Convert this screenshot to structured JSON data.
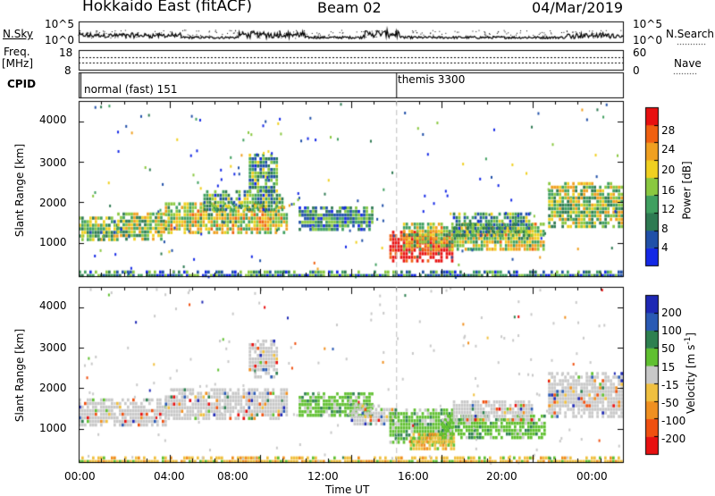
{
  "header": {
    "station": "Hokkaido East (fitACF)",
    "beam": "Beam 02",
    "date": "04/Mar/2019"
  },
  "summary_panel": {
    "nsky_label": "N.Sky",
    "nsky_ticks": [
      "10^5",
      "10^0"
    ],
    "nsearch_label": "N.Search",
    "nsearch_ticks": [
      "10^5",
      "10^0"
    ],
    "freq_label_1": "Freq.",
    "freq_label_2": "[MHz]",
    "freq_ticks": [
      "18",
      "8"
    ],
    "nave_label": "Nave",
    "nave_ticks": [
      "60",
      "0"
    ],
    "cpid_label": "CPID",
    "cpid_modes": [
      {
        "label": "normal (fast) 151",
        "start_hour": 0
      },
      {
        "label": "themis 3300",
        "start_hour": 14
      }
    ]
  },
  "chart_data": [
    {
      "type": "heatmap",
      "name": "power",
      "xlabel": "",
      "ylabel": "Slant Range [km]",
      "xlim": [
        0,
        24
      ],
      "ylim": [
        180,
        4500
      ],
      "y_ticks": [
        1000,
        2000,
        3000,
        4000
      ],
      "colorbar_label": "Power [dB]",
      "colorbar_ticks": [
        4,
        8,
        12,
        16,
        20,
        24,
        28
      ],
      "colorbar_colors": [
        "#1428e6",
        "#2050a8",
        "#2e7a52",
        "#40a060",
        "#8ac840",
        "#f0d020",
        "#f0a020",
        "#f06010",
        "#e81010"
      ],
      "echo_regions": [
        {
          "t0": 0.0,
          "t1": 1.7,
          "r0": 1050,
          "r1": 1650,
          "level": 0.45
        },
        {
          "t0": 1.7,
          "t1": 3.8,
          "r0": 1100,
          "r1": 1750,
          "level": 0.5
        },
        {
          "t0": 3.8,
          "t1": 9.2,
          "r0": 1250,
          "r1": 2000,
          "level": 0.55
        },
        {
          "t0": 5.5,
          "t1": 9.0,
          "r0": 1850,
          "r1": 2300,
          "level": 0.35
        },
        {
          "t0": 7.5,
          "t1": 8.7,
          "r0": 2300,
          "r1": 3200,
          "level": 0.35
        },
        {
          "t0": 9.7,
          "t1": 13.0,
          "r0": 1300,
          "r1": 1900,
          "level": 0.3
        },
        {
          "t0": 13.7,
          "t1": 16.5,
          "r0": 580,
          "r1": 1300,
          "level": 0.95
        },
        {
          "t0": 14.3,
          "t1": 20.5,
          "r0": 800,
          "r1": 1500,
          "level": 0.55
        },
        {
          "t0": 16.5,
          "t1": 20.0,
          "r0": 1200,
          "r1": 1750,
          "level": 0.35
        },
        {
          "t0": 20.7,
          "t1": 23.9,
          "r0": 1400,
          "r1": 2500,
          "level": 0.5
        },
        {
          "t0": 0.0,
          "t1": 24.0,
          "r0": 180,
          "r1": 320,
          "level": 0.3
        }
      ]
    },
    {
      "type": "heatmap",
      "name": "velocity",
      "xlabel": "Time UT",
      "ylabel": "Slant Range [km]",
      "xlim": [
        0,
        24
      ],
      "ylim": [
        180,
        4500
      ],
      "x_ticks": [
        "00:00",
        "04:00",
        "08:00",
        "12:00",
        "16:00",
        "20:00",
        "00:00"
      ],
      "y_ticks": [
        1000,
        2000,
        3000,
        4000
      ],
      "colorbar_label": "Velocity [m s^-1]",
      "colorbar_ticks": [
        "200",
        "100",
        "50",
        "15",
        "-15",
        "-50",
        "-100",
        "-200"
      ],
      "colorbar_colors": [
        "#1e28b4",
        "#2a5ab4",
        "#2e8050",
        "#60c030",
        "#c8c8c8",
        "#f0c040",
        "#f09020",
        "#f05010",
        "#e81010"
      ],
      "echo_regions": [
        {
          "t0": 0.0,
          "t1": 3.8,
          "r0": 1050,
          "r1": 1750,
          "kind": "grey"
        },
        {
          "t0": 3.8,
          "t1": 9.2,
          "r0": 1250,
          "r1": 2000,
          "kind": "grey"
        },
        {
          "t0": 7.5,
          "t1": 8.7,
          "r0": 2300,
          "r1": 3200,
          "kind": "grey"
        },
        {
          "t0": 9.7,
          "t1": 13.0,
          "r0": 1300,
          "r1": 1900,
          "kind": "green"
        },
        {
          "t0": 12.0,
          "t1": 14.0,
          "r0": 1100,
          "r1": 1600,
          "kind": "grey"
        },
        {
          "t0": 13.7,
          "t1": 16.5,
          "r0": 650,
          "r1": 1500,
          "kind": "green"
        },
        {
          "t0": 14.6,
          "t1": 16.6,
          "r0": 500,
          "r1": 900,
          "kind": "orange"
        },
        {
          "t0": 16.0,
          "t1": 20.5,
          "r0": 800,
          "r1": 1350,
          "kind": "green"
        },
        {
          "t0": 16.5,
          "t1": 20.0,
          "r0": 1200,
          "r1": 1700,
          "kind": "grey"
        },
        {
          "t0": 20.7,
          "t1": 23.9,
          "r0": 1300,
          "r1": 2400,
          "kind": "grey"
        },
        {
          "t0": 0.0,
          "t1": 24.0,
          "r0": 180,
          "r1": 320,
          "kind": "orange"
        }
      ]
    }
  ]
}
